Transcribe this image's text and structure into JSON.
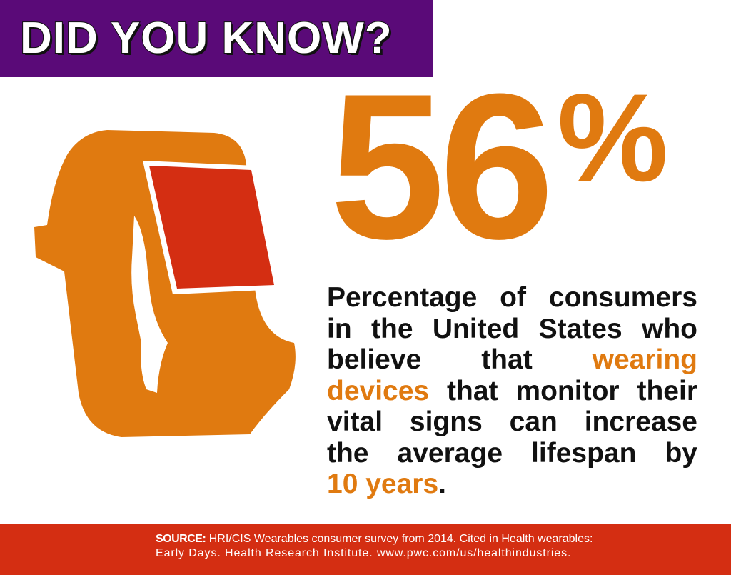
{
  "header": {
    "title": "DID YOU KNOW?"
  },
  "stat": {
    "number": "56",
    "symbol": "%",
    "color": "#e07a10"
  },
  "description": {
    "lines": [
      [
        {
          "text": "Percentage of consumers",
          "color": "#111111"
        }
      ],
      [
        {
          "text": "in the United States who",
          "color": "#111111"
        }
      ],
      [
        {
          "text": "believe that ",
          "color": "#111111"
        },
        {
          "text": "wearing",
          "color": "#e07a10"
        }
      ],
      [
        {
          "text": "devices",
          "color": "#e07a10"
        },
        {
          "text": " that monitor their",
          "color": "#111111"
        }
      ],
      [
        {
          "text": "vital signs can increase",
          "color": "#111111"
        }
      ],
      [
        {
          "text": "the average lifespan by",
          "color": "#111111"
        }
      ],
      [
        {
          "text": "10 years",
          "color": "#e07a10"
        },
        {
          "text": ".",
          "color": "#111111"
        }
      ]
    ]
  },
  "source": {
    "label": "SOURCE:",
    "lines": [
      "HRI/CIS Wearables consumer survey from 2014. Cited in Health wearables:",
      "Early Days. Health Research Institute. www.pwc.com/us/healthindustries."
    ]
  }
}
